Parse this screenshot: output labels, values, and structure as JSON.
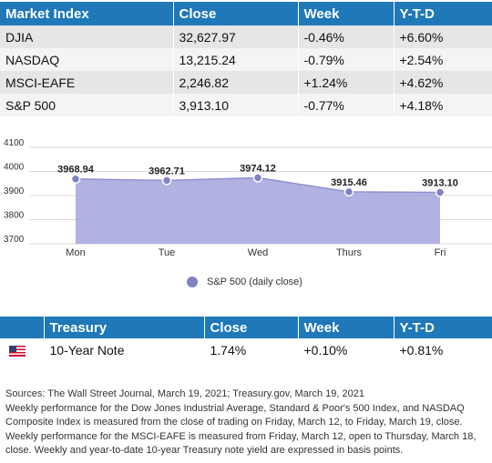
{
  "market_table": {
    "headers": [
      "Market Index",
      "Close",
      "Week",
      "Y-T-D"
    ],
    "rows": [
      [
        "DJIA",
        "32,627.97",
        "-0.46%",
        "+6.60%"
      ],
      [
        "NASDAQ",
        "13,215.24",
        "-0.79%",
        "+2.54%"
      ],
      [
        "MSCI-EAFE",
        "2,246.82",
        "+1.24%",
        "+4.62%"
      ],
      [
        "S&P 500",
        "3,913.10",
        "-0.77%",
        "+4.18%"
      ]
    ]
  },
  "chart_data": {
    "type": "area",
    "categories": [
      "Mon",
      "Tue",
      "Wed",
      "Thurs",
      "Fri"
    ],
    "series": [
      {
        "name": "S&P 500 (daily close)",
        "values": [
          3968.94,
          3962.71,
          3974.12,
          3915.46,
          3913.1
        ]
      }
    ],
    "data_labels": [
      "3968.94",
      "3962.71",
      "3974.12",
      "3915.46",
      "3913.10"
    ],
    "y_ticks": [
      "4100",
      "4000",
      "3900",
      "3800",
      "3700"
    ],
    "ylim": [
      3700,
      4100
    ],
    "grid": true,
    "legend": "bottom-center",
    "colors": {
      "fill": "#a9a9df",
      "line": "#8f91cf",
      "marker": "#7f83c0"
    }
  },
  "legend": {
    "label": "S&P 500 (daily close)"
  },
  "treasury_table": {
    "headers": [
      "Treasury",
      "Close",
      "Week",
      "Y-T-D"
    ],
    "row": {
      "flag_icon": "us-flag-icon",
      "name": "10-Year Note",
      "close": "1.74%",
      "week": "+0.10%",
      "ytd": "+0.81%"
    }
  },
  "sources": {
    "line1": "Sources: The Wall Street Journal, March 19, 2021; Treasury.gov, March 19, 2021",
    "line2": "Weekly performance for the Dow Jones Industrial Average, Standard & Poor's 500 Index, and NASDAQ Composite Index is measured from the close of trading on Friday, March 12, to Friday, March 19, close. Weekly performance for the MSCI-EAFE is measured from Friday, March 12, open to Thursday, March 18, close. Weekly and year-to-date 10-year Treasury note yield are expressed in basis points."
  },
  "colors": {
    "header_bg": "#1f78b8",
    "header_text": "#ffffff"
  }
}
